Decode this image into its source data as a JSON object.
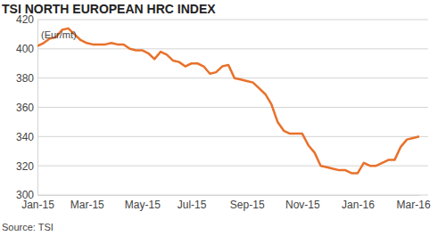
{
  "chart_data": {
    "type": "line",
    "title": "TSI NORTH EUROPEAN HRC INDEX",
    "ylabel": "(Eur/mt)",
    "source": "Source: TSI",
    "categories": [
      "Jan-15",
      null,
      null,
      null,
      null,
      null,
      null,
      null,
      "Mar-15",
      null,
      null,
      null,
      null,
      null,
      null,
      null,
      null,
      "May-15",
      null,
      null,
      null,
      null,
      null,
      null,
      null,
      "Jul-15",
      null,
      null,
      null,
      null,
      null,
      null,
      null,
      null,
      "Sep-15",
      null,
      null,
      null,
      null,
      null,
      null,
      null,
      null,
      "Nov-15",
      null,
      null,
      null,
      null,
      null,
      null,
      null,
      null,
      "Jan-16",
      null,
      null,
      null,
      null,
      null,
      null,
      null,
      null,
      "Mar-16",
      null
    ],
    "values": [
      402,
      404,
      407,
      408,
      413,
      414,
      410,
      406,
      404,
      403,
      403,
      403,
      404,
      403,
      403,
      400,
      399,
      399,
      397,
      393,
      398,
      396,
      392,
      391,
      388,
      390,
      390,
      388,
      383,
      384,
      388,
      389,
      380,
      379,
      378,
      377,
      373,
      369,
      362,
      350,
      344,
      342,
      342,
      342,
      334,
      329,
      320,
      319,
      318,
      317,
      317,
      315,
      315,
      322,
      320,
      320,
      322,
      324,
      324,
      333,
      338,
      339,
      340
    ],
    "color": "#e8712b",
    "ylim": [
      300,
      420
    ],
    "yticks": [
      300,
      320,
      340,
      360,
      380,
      400,
      420
    ],
    "grid": true
  }
}
